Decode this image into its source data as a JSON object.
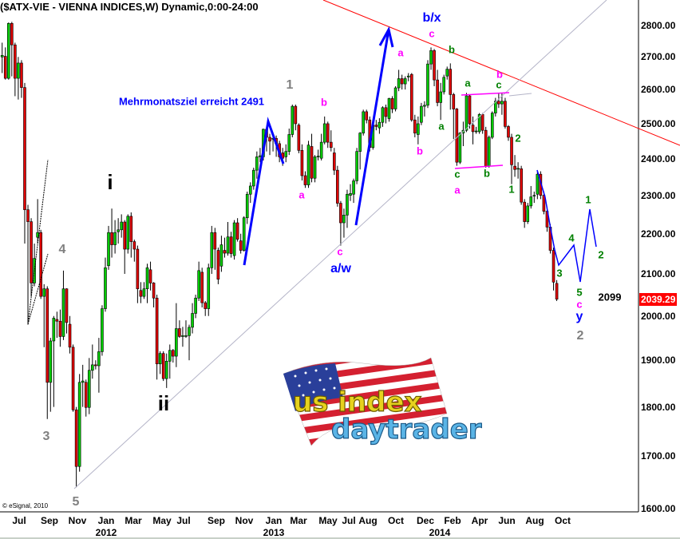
{
  "header": {
    "title": "($ATX-VIE - VIENNA INDICES,W) Dynamic,0:00-24:00"
  },
  "footer": {
    "copyright": "© eSignal, 2010"
  },
  "logo": {
    "line1": "us index",
    "line2": "daytrader"
  },
  "colors": {
    "up": "#00cc00",
    "down": "#e00000",
    "trendline": "#ff0000",
    "support": "#b0b0c0",
    "wave_blue": "#0000ff",
    "channel": "#ff00ff",
    "last_price_bg": "#ff0000"
  },
  "chart_data": {
    "type": "candlestick",
    "title": "($ATX-VIE - VIENNA INDICES,W) Dynamic,0:00-24:00",
    "interval": "weekly",
    "yscale": "log",
    "ylim": [
      1600,
      2850
    ],
    "grid": false,
    "y_ticks": [
      "2800.00",
      "2700.00",
      "2600.00",
      "2500.00",
      "2400.00",
      "2300.00",
      "2200.00",
      "2100.00",
      "2000.00",
      "1900.00",
      "1800.00",
      "1700.00",
      "1600.00"
    ],
    "x_ticks": [
      "Jul",
      "Sep",
      "Nov",
      "Jan",
      "Mar",
      "May",
      "Jul",
      "Sep",
      "Nov",
      "Jan",
      "Mar",
      "May",
      "Jul",
      "Aug",
      "Oct",
      "Dec",
      "Feb",
      "Apr",
      "Jun",
      "Aug",
      "Oct"
    ],
    "x_years": [
      "2012",
      "2013",
      "2014"
    ],
    "last_price": "2039.29",
    "ohlc_fields": [
      "open",
      "high",
      "low",
      "close"
    ],
    "candles": [
      [
        2700,
        2745,
        2650,
        2705
      ],
      [
        2702,
        2730,
        2630,
        2634
      ],
      [
        2634,
        2810,
        2630,
        2807
      ],
      [
        2807,
        2812,
        2640,
        2738
      ],
      [
        2738,
        2745,
        2580,
        2634
      ],
      [
        2634,
        2700,
        2570,
        2681
      ],
      [
        2681,
        2690,
        2575,
        2606
      ],
      [
        2606,
        2620,
        2175,
        2262
      ],
      [
        2262,
        2275,
        1980,
        2231
      ],
      [
        2231,
        2240,
        2046,
        2078
      ],
      [
        2078,
        2175,
        2070,
        2138
      ],
      [
        2191,
        2290,
        2175,
        2203
      ],
      [
        2203,
        2210,
        2040,
        2046
      ],
      [
        2046,
        2075,
        1929,
        2064
      ],
      [
        2064,
        2070,
        1775,
        1852
      ],
      [
        1852,
        1950,
        1790,
        1943
      ],
      [
        1943,
        2000,
        1800,
        1995
      ],
      [
        1992,
        2010,
        1950,
        1988
      ],
      [
        1988,
        2015,
        1930,
        1953
      ],
      [
        1953,
        2108,
        1945,
        2064
      ],
      [
        2064,
        2065,
        1960,
        1985
      ],
      [
        1981,
        2000,
        1915,
        1929
      ],
      [
        1929,
        1935,
        1790,
        1794
      ],
      [
        1794,
        1800,
        1640,
        1680
      ],
      [
        1680,
        1870,
        1670,
        1852
      ],
      [
        1852,
        1890,
        1800,
        1855
      ],
      [
        1852,
        1858,
        1780,
        1799
      ],
      [
        1799,
        1905,
        1785,
        1878
      ],
      [
        1878,
        1935,
        1860,
        1890
      ],
      [
        1890,
        1900,
        1880,
        1888
      ],
      [
        1888,
        1950,
        1830,
        1919
      ],
      [
        1919,
        2025,
        1910,
        2017
      ],
      [
        2017,
        2140,
        2010,
        2115
      ],
      [
        2120,
        2220,
        2110,
        2203
      ],
      [
        2203,
        2265,
        2140,
        2172
      ],
      [
        2172,
        2235,
        2150,
        2203
      ],
      [
        2205,
        2240,
        2175,
        2210
      ],
      [
        2210,
        2250,
        2190,
        2230
      ],
      [
        2230,
        2235,
        2100,
        2161
      ],
      [
        2161,
        2250,
        2150,
        2245
      ],
      [
        2245,
        2255,
        2140,
        2180
      ],
      [
        2180,
        2185,
        2130,
        2161
      ],
      [
        2161,
        2170,
        2030,
        2064
      ],
      [
        2060,
        2080,
        2030,
        2046
      ],
      [
        2046,
        2080,
        2040,
        2064
      ],
      [
        2064,
        2125,
        2030,
        2115
      ],
      [
        2110,
        2130,
        2060,
        2078
      ],
      [
        2078,
        2080,
        2020,
        2042
      ],
      [
        2042,
        2050,
        1858,
        1892
      ],
      [
        1892,
        1920,
        1870,
        1915
      ],
      [
        1915,
        1920,
        1855,
        1860
      ],
      [
        1860,
        1915,
        1840,
        1898
      ],
      [
        1898,
        1935,
        1860,
        1922
      ],
      [
        1922,
        1925,
        1895,
        1909
      ],
      [
        1909,
        2030,
        1885,
        1971
      ],
      [
        1971,
        1990,
        1950,
        1953
      ],
      [
        1953,
        1975,
        1930,
        1955
      ],
      [
        1955,
        1990,
        1950,
        1955
      ],
      [
        1955,
        1980,
        1900,
        1974
      ],
      [
        1974,
        2030,
        1960,
        2006
      ],
      [
        2006,
        2050,
        1995,
        2042
      ],
      [
        2042,
        2130,
        2035,
        2108
      ],
      [
        2104,
        2115,
        2020,
        2031
      ],
      [
        2031,
        2035,
        2000,
        2017
      ],
      [
        2017,
        2125,
        2000,
        2115
      ],
      [
        2115,
        2220,
        2100,
        2203
      ],
      [
        2203,
        2215,
        2110,
        2161
      ],
      [
        2158,
        2165,
        2075,
        2087
      ],
      [
        2119,
        2195,
        2105,
        2172
      ],
      [
        2158,
        2190,
        2140,
        2151
      ],
      [
        2151,
        2230,
        2145,
        2192
      ],
      [
        2192,
        2205,
        2140,
        2150
      ],
      [
        2145,
        2235,
        2135,
        2228
      ],
      [
        2228,
        2240,
        2180,
        2186
      ],
      [
        2182,
        2200,
        2150,
        2158
      ],
      [
        2158,
        2245,
        2155,
        2241
      ],
      [
        2241,
        2310,
        2225,
        2303
      ],
      [
        2303,
        2335,
        2280,
        2325
      ],
      [
        2325,
        2375,
        2315,
        2368
      ],
      [
        2368,
        2420,
        2345,
        2405
      ],
      [
        2405,
        2430,
        2390,
        2408
      ],
      [
        2405,
        2485,
        2395,
        2483
      ],
      [
        2483,
        2490,
        2420,
        2460
      ],
      [
        2460,
        2470,
        2410,
        2449
      ],
      [
        2455,
        2470,
        2420,
        2457
      ],
      [
        2457,
        2465,
        2405,
        2442
      ],
      [
        2442,
        2450,
        2390,
        2405
      ],
      [
        2416,
        2430,
        2380,
        2401
      ],
      [
        2405,
        2440,
        2390,
        2420
      ],
      [
        2420,
        2485,
        2410,
        2468
      ],
      [
        2468,
        2555,
        2460,
        2550
      ],
      [
        2550,
        2555,
        2480,
        2499
      ],
      [
        2495,
        2500,
        2415,
        2423
      ],
      [
        2423,
        2440,
        2340,
        2353
      ],
      [
        2353,
        2365,
        2320,
        2328
      ],
      [
        2328,
        2450,
        2320,
        2438
      ],
      [
        2434,
        2470,
        2335,
        2346
      ],
      [
        2346,
        2410,
        2335,
        2405
      ],
      [
        2405,
        2425,
        2395,
        2407
      ],
      [
        2401,
        2470,
        2395,
        2446
      ],
      [
        2446,
        2520,
        2440,
        2499
      ],
      [
        2499,
        2505,
        2430,
        2446
      ],
      [
        2446,
        2480,
        2420,
        2431
      ],
      [
        2416,
        2430,
        2355,
        2368
      ],
      [
        2368,
        2380,
        2270,
        2279
      ],
      [
        2279,
        2285,
        2170,
        2228
      ],
      [
        2228,
        2265,
        2190,
        2248
      ],
      [
        2248,
        2315,
        2215,
        2303
      ],
      [
        2300,
        2330,
        2285,
        2305
      ],
      [
        2303,
        2345,
        2280,
        2339
      ],
      [
        2339,
        2430,
        2330,
        2420
      ],
      [
        2420,
        2475,
        2370,
        2472
      ],
      [
        2472,
        2540,
        2465,
        2534
      ],
      [
        2534,
        2540,
        2500,
        2510
      ],
      [
        2510,
        2520,
        2420,
        2431
      ],
      [
        2431,
        2505,
        2425,
        2495
      ],
      [
        2495,
        2510,
        2480,
        2491
      ],
      [
        2487,
        2515,
        2470,
        2503
      ],
      [
        2503,
        2550,
        2490,
        2546
      ],
      [
        2546,
        2555,
        2500,
        2520
      ],
      [
        2514,
        2575,
        2505,
        2573
      ],
      [
        2573,
        2580,
        2530,
        2542
      ],
      [
        2542,
        2610,
        2535,
        2605
      ],
      [
        2605,
        2660,
        2595,
        2633
      ],
      [
        2633,
        2645,
        2600,
        2617
      ],
      [
        2617,
        2640,
        2600,
        2633
      ],
      [
        2638,
        2650,
        2625,
        2641
      ],
      [
        2646,
        2650,
        2505,
        2510
      ],
      [
        2510,
        2525,
        2460,
        2472
      ],
      [
        2468,
        2520,
        2440,
        2499
      ],
      [
        2503,
        2560,
        2495,
        2550
      ],
      [
        2550,
        2565,
        2520,
        2553
      ],
      [
        2553,
        2690,
        2545,
        2678
      ],
      [
        2678,
        2730,
        2660,
        2720
      ],
      [
        2720,
        2725,
        2610,
        2629
      ],
      [
        2629,
        2660,
        2550,
        2561
      ],
      [
        2561,
        2620,
        2510,
        2593
      ],
      [
        2593,
        2645,
        2585,
        2637
      ],
      [
        2641,
        2670,
        2630,
        2662
      ],
      [
        2662,
        2680,
        2540,
        2585
      ],
      [
        2585,
        2590,
        2455,
        2542
      ],
      [
        2542,
        2545,
        2380,
        2390
      ],
      [
        2390,
        2475,
        2385,
        2472
      ],
      [
        2472,
        2505,
        2435,
        2480
      ],
      [
        2480,
        2590,
        2475,
        2581
      ],
      [
        2581,
        2585,
        2485,
        2499
      ],
      [
        2495,
        2520,
        2440,
        2476
      ],
      [
        2476,
        2490,
        2470,
        2478
      ],
      [
        2476,
        2530,
        2470,
        2526
      ],
      [
        2526,
        2530,
        2470,
        2480
      ],
      [
        2480,
        2490,
        2375,
        2379
      ],
      [
        2379,
        2465,
        2375,
        2460
      ],
      [
        2460,
        2535,
        2455,
        2530
      ],
      [
        2530,
        2575,
        2520,
        2565
      ],
      [
        2565,
        2590,
        2545,
        2557
      ],
      [
        2557,
        2590,
        2525,
        2565
      ],
      [
        2565,
        2575,
        2485,
        2491
      ],
      [
        2491,
        2495,
        2450,
        2460
      ],
      [
        2460,
        2470,
        2330,
        2383
      ],
      [
        2379,
        2410,
        2350,
        2370
      ],
      [
        2372,
        2390,
        2345,
        2373
      ],
      [
        2372,
        2380,
        2275,
        2282
      ],
      [
        2282,
        2290,
        2215,
        2231
      ],
      [
        2231,
        2280,
        2225,
        2272
      ],
      [
        2272,
        2325,
        2265,
        2296
      ],
      [
        2298,
        2310,
        2280,
        2300
      ],
      [
        2303,
        2365,
        2290,
        2357
      ],
      [
        2357,
        2365,
        2290,
        2300
      ],
      [
        2300,
        2310,
        2250,
        2258
      ],
      [
        2258,
        2270,
        2205,
        2217
      ],
      [
        2217,
        2225,
        2150,
        2158
      ],
      [
        2158,
        2165,
        2060,
        2080
      ],
      [
        2077,
        2085,
        2035,
        2039.29
      ]
    ],
    "annotations": {
      "target_note": "Mehrmonatsziel erreicht 2491",
      "wave_i": "i",
      "wave_ii": "ii",
      "wave_3_gray": "3",
      "wave_4_gray": "4",
      "wave_5_gray": "5",
      "wave_1_gray": "1",
      "wave_2_gray": "2",
      "mag_a1": "a",
      "mag_b1": "b",
      "mag_c1": "c",
      "aw": "a/w",
      "bx": "b/x",
      "y": "y",
      "mag_a2": "a",
      "mag_b2": "b",
      "mag_c2": "c",
      "mag_a3": "a",
      "mag_b3": "b",
      "mag_c3": "c",
      "grn_b1": "b",
      "grn_a1": "a",
      "grn_a2": "a",
      "grn_c1": "c",
      "grn_c2": "c",
      "grn_b2": "b",
      "grn_1a": "1",
      "grn_2a": "2",
      "grn_3": "3",
      "grn_4": "4",
      "grn_5": "5",
      "grn_1b": "1",
      "grn_2b": "2",
      "target_value": "2099"
    }
  }
}
